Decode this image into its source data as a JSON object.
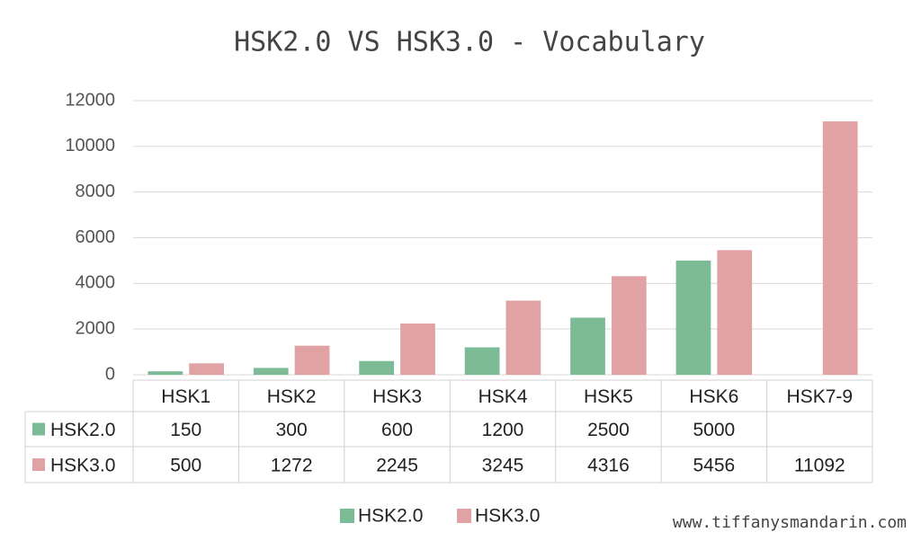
{
  "chart_data": {
    "type": "bar",
    "title": "HSK2.0 VS HSK3.0 - Vocabulary",
    "categories": [
      "HSK1",
      "HSK2",
      "HSK3",
      "HSK4",
      "HSK5",
      "HSK6",
      "HSK7-9"
    ],
    "series": [
      {
        "name": "HSK2.0",
        "color": "#7dbb97",
        "values": [
          150,
          300,
          600,
          1200,
          2500,
          5000,
          null
        ]
      },
      {
        "name": "HSK3.0",
        "color": "#e0a2a2",
        "values": [
          500,
          1272,
          2245,
          3245,
          4316,
          5456,
          11092
        ]
      }
    ],
    "ylim": [
      0,
      12000
    ],
    "yticks": [
      0,
      2000,
      4000,
      6000,
      8000,
      10000,
      12000
    ],
    "grid": true,
    "watermark": "www.tiffanysmandarin.com"
  }
}
